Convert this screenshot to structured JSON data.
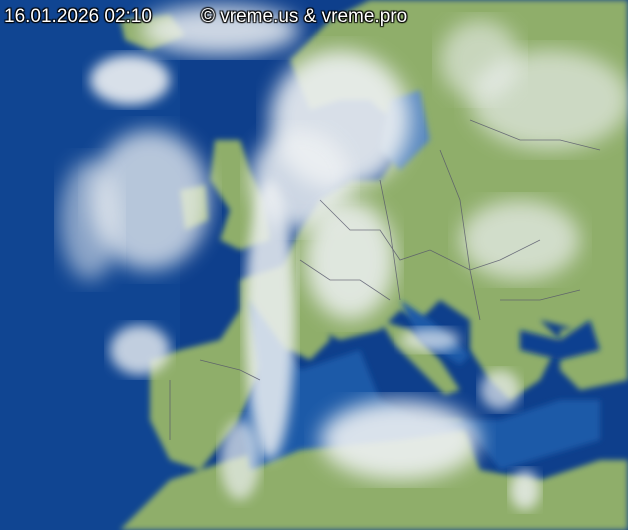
{
  "image": {
    "timestamp": "16.01.2026 02:10",
    "copyright": "© vreme.us & vreme.pro",
    "colors": {
      "ocean": "#0b3a86",
      "land": "#8fae6a",
      "cloud": "#e8ecef",
      "borders": "#5a5a6a"
    }
  }
}
